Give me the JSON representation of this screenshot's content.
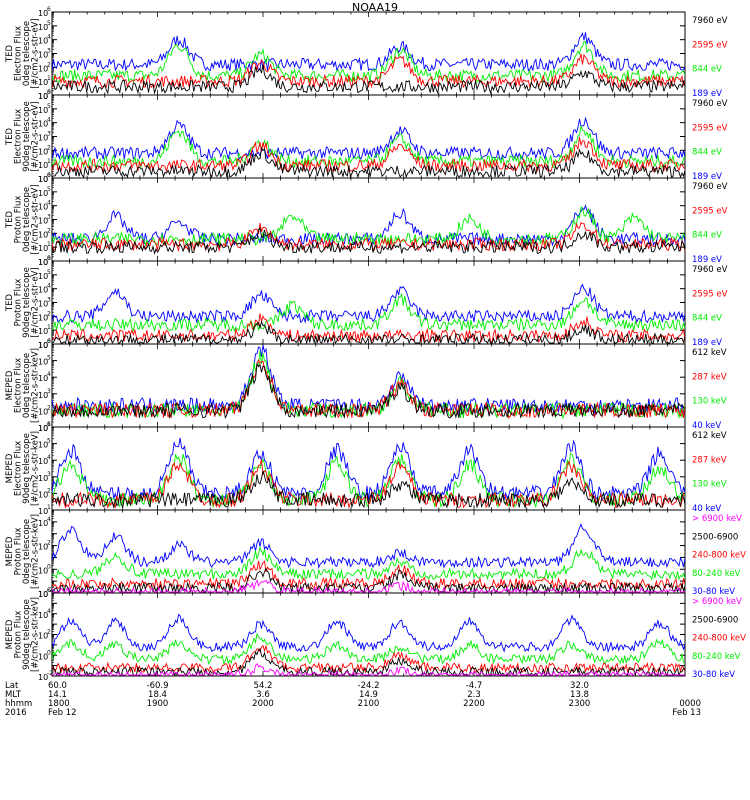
{
  "title": "NOAA19",
  "colors": {
    "blue": "#0000ff",
    "red": "#ff0000",
    "green": "#00ee00",
    "black": "#000000",
    "magenta": "#ff00ff",
    "axis": "#000000"
  },
  "chart_data": [
    {
      "type": "line",
      "instrument": "TED",
      "quantity": "Electron Flux",
      "telescope": "0deg telescope",
      "units": "[#/cm2-s-str-eV]",
      "ylabel": "TED Electron Flux 0deg telescope [#/cm2-s-str-eV]",
      "yscale": "log",
      "ylim_exp": [
        0,
        6
      ],
      "channels": [
        {
          "name": "7960 eV",
          "color": "black"
        },
        {
          "name": "2595 eV",
          "color": "red"
        },
        {
          "name": "844 eV",
          "color": "green"
        },
        {
          "name": "189 eV",
          "color": "blue"
        }
      ],
      "series": [
        {
          "name": "189 eV",
          "color": "blue",
          "base": 2.2,
          "bursts": [
            [
              0.2,
              1.8
            ],
            [
              0.55,
              1.3
            ],
            [
              0.84,
              2.0
            ]
          ]
        },
        {
          "name": "844 eV",
          "color": "green",
          "base": 1.4,
          "bursts": [
            [
              0.2,
              2.2
            ],
            [
              0.33,
              1.5
            ],
            [
              0.55,
              1.8
            ],
            [
              0.84,
              2.2
            ]
          ]
        },
        {
          "name": "2595 eV",
          "color": "red",
          "base": 1.0,
          "bursts": [
            [
              0.33,
              1.3
            ],
            [
              0.55,
              1.5
            ],
            [
              0.84,
              1.6
            ]
          ]
        },
        {
          "name": "7960 eV",
          "color": "black",
          "base": 0.6,
          "bursts": [
            [
              0.33,
              1.2
            ],
            [
              0.84,
              1.0
            ]
          ]
        }
      ]
    },
    {
      "type": "line",
      "instrument": "TED",
      "quantity": "Electron Flux",
      "telescope": "90deg telescope",
      "units": "[#/cm2-s-str-eV]",
      "ylabel": "TED Electron Flux 90deg telescope [#/cm2-s-str-eV]",
      "yscale": "log",
      "ylim_exp": [
        0,
        6
      ],
      "channels": [
        {
          "name": "7960 eV",
          "color": "black"
        },
        {
          "name": "2595 eV",
          "color": "red"
        },
        {
          "name": "844 eV",
          "color": "green"
        },
        {
          "name": "189 eV",
          "color": "blue"
        }
      ],
      "series": [
        {
          "name": "189 eV",
          "color": "blue",
          "base": 1.8,
          "bursts": [
            [
              0.2,
              2.0
            ],
            [
              0.55,
              1.6
            ],
            [
              0.84,
              2.4
            ]
          ]
        },
        {
          "name": "844 eV",
          "color": "green",
          "base": 1.2,
          "bursts": [
            [
              0.2,
              2.2
            ],
            [
              0.33,
              1.4
            ],
            [
              0.55,
              1.6
            ],
            [
              0.84,
              2.2
            ]
          ]
        },
        {
          "name": "2595 eV",
          "color": "red",
          "base": 0.9,
          "bursts": [
            [
              0.33,
              1.4
            ],
            [
              0.55,
              1.4
            ],
            [
              0.84,
              1.8
            ]
          ]
        },
        {
          "name": "7960 eV",
          "color": "black",
          "base": 0.5,
          "bursts": [
            [
              0.33,
              1.3
            ],
            [
              0.84,
              1.2
            ]
          ]
        }
      ]
    },
    {
      "type": "line",
      "instrument": "TED",
      "quantity": "Proton Flux",
      "telescope": "0deg telescope",
      "units": "[#/cm2-s-str-eV]",
      "ylabel": "TED Proton Flux 0deg telescope [#/cm2-s-str-eV]",
      "yscale": "log",
      "ylim_exp": [
        0,
        6
      ],
      "channels": [
        {
          "name": "7960 eV",
          "color": "black"
        },
        {
          "name": "2595 eV",
          "color": "red"
        },
        {
          "name": "844 eV",
          "color": "green"
        },
        {
          "name": "189 eV",
          "color": "blue"
        }
      ],
      "series": [
        {
          "name": "189 eV",
          "color": "blue",
          "base": 1.6,
          "bursts": [
            [
              0.1,
              1.6
            ],
            [
              0.2,
              1.2
            ],
            [
              0.55,
              1.8
            ],
            [
              0.84,
              2.2
            ]
          ]
        },
        {
          "name": "844 eV",
          "color": "green",
          "base": 1.6,
          "bursts": [
            [
              0.38,
              1.6
            ],
            [
              0.66,
              1.4
            ],
            [
              0.84,
              2.0
            ],
            [
              0.92,
              1.5
            ]
          ]
        },
        {
          "name": "2595 eV",
          "color": "red",
          "base": 1.2,
          "bursts": [
            [
              0.33,
              1.2
            ],
            [
              0.84,
              1.4
            ]
          ]
        },
        {
          "name": "7960 eV",
          "color": "black",
          "base": 1.0,
          "bursts": [
            [
              0.33,
              1.0
            ],
            [
              0.84,
              1.0
            ]
          ]
        }
      ]
    },
    {
      "type": "line",
      "instrument": "TED",
      "quantity": "Proton Flux",
      "telescope": "90deg telescope",
      "units": "[#/cm2-s-str-eV]",
      "ylabel": "TED Proton Flux 90deg telescope [#/cm2-s-str-eV]",
      "yscale": "log",
      "ylim_exp": [
        0,
        6
      ],
      "channels": [
        {
          "name": "7960 eV",
          "color": "black"
        },
        {
          "name": "2595 eV",
          "color": "red"
        },
        {
          "name": "844 eV",
          "color": "green"
        },
        {
          "name": "189 eV",
          "color": "blue"
        }
      ],
      "series": [
        {
          "name": "189 eV",
          "color": "blue",
          "base": 2.0,
          "bursts": [
            [
              0.1,
              1.8
            ],
            [
              0.33,
              1.5
            ],
            [
              0.55,
              1.8
            ],
            [
              0.84,
              2.0
            ]
          ]
        },
        {
          "name": "844 eV",
          "color": "green",
          "base": 1.4,
          "bursts": [
            [
              0.38,
              1.4
            ],
            [
              0.55,
              1.8
            ],
            [
              0.84,
              1.8
            ]
          ]
        },
        {
          "name": "2595 eV",
          "color": "red",
          "base": 0.6,
          "bursts": [
            [
              0.33,
              1.2
            ],
            [
              0.84,
              1.0
            ]
          ]
        },
        {
          "name": "7960 eV",
          "color": "black",
          "base": 0.3,
          "bursts": [
            [
              0.33,
              0.9
            ],
            [
              0.84,
              0.8
            ]
          ]
        }
      ]
    },
    {
      "type": "line",
      "instrument": "MEPED",
      "quantity": "Electron Flux",
      "telescope": "0deg telescope",
      "units": "[#/cm2-s-str-keV]",
      "ylabel": "MEPED Electron Flux 0deg telescope [#/cm2-s-str-keV]",
      "yscale": "log",
      "ylim_exp": [
        1,
        6
      ],
      "channels": [
        {
          "name": "612 keV",
          "color": "black"
        },
        {
          "name": "287 keV",
          "color": "red"
        },
        {
          "name": "130 keV",
          "color": "green"
        },
        {
          "name": "40 keV",
          "color": "blue"
        }
      ],
      "series": [
        {
          "name": "40 keV",
          "color": "blue",
          "base": 2.3,
          "bursts": [
            [
              0.33,
              3.4
            ],
            [
              0.55,
              1.7
            ]
          ]
        },
        {
          "name": "130 keV",
          "color": "green",
          "base": 2.0,
          "bursts": [
            [
              0.33,
              3.2
            ],
            [
              0.55,
              1.6
            ]
          ]
        },
        {
          "name": "287 keV",
          "color": "red",
          "base": 2.0,
          "bursts": [
            [
              0.33,
              3.0
            ],
            [
              0.55,
              1.5
            ]
          ]
        },
        {
          "name": "612 keV",
          "color": "black",
          "base": 2.0,
          "bursts": [
            [
              0.33,
              2.6
            ],
            [
              0.55,
              1.3
            ]
          ]
        }
      ]
    },
    {
      "type": "line",
      "instrument": "MEPED",
      "quantity": "Electron Flux",
      "telescope": "90deg telescope",
      "units": "[#/cm2-s-str-keV]",
      "ylabel": "MEPED Electron Flux 90deg telescope [#/cm2-s-str-keV]",
      "yscale": "log",
      "ylim_exp": [
        1,
        6
      ],
      "channels": [
        {
          "name": "612 keV",
          "color": "black"
        },
        {
          "name": "287 keV",
          "color": "red"
        },
        {
          "name": "130 keV",
          "color": "green"
        },
        {
          "name": "40 keV",
          "color": "blue"
        }
      ],
      "series": [
        {
          "name": "40 keV",
          "color": "blue",
          "base": 2.0,
          "bursts": [
            [
              0.03,
              2.6
            ],
            [
              0.2,
              3.0
            ],
            [
              0.33,
              2.4
            ],
            [
              0.45,
              2.6
            ],
            [
              0.55,
              2.8
            ],
            [
              0.66,
              2.6
            ],
            [
              0.82,
              2.8
            ],
            [
              0.96,
              2.4
            ]
          ]
        },
        {
          "name": "130 keV",
          "color": "green",
          "base": 1.6,
          "bursts": [
            [
              0.03,
              2.2
            ],
            [
              0.2,
              2.6
            ],
            [
              0.33,
              2.2
            ],
            [
              0.45,
              2.2
            ],
            [
              0.55,
              2.4
            ],
            [
              0.66,
              2.2
            ],
            [
              0.82,
              2.4
            ],
            [
              0.96,
              2.0
            ]
          ]
        },
        {
          "name": "287 keV",
          "color": "red",
          "base": 1.6,
          "bursts": [
            [
              0.2,
              2.2
            ],
            [
              0.33,
              2.0
            ],
            [
              0.55,
              2.0
            ],
            [
              0.82,
              2.0
            ]
          ]
        },
        {
          "name": "612 keV",
          "color": "black",
          "base": 1.6,
          "bursts": [
            [
              0.33,
              1.4
            ],
            [
              0.55,
              1.0
            ],
            [
              0.82,
              1.0
            ]
          ]
        }
      ]
    },
    {
      "type": "line",
      "instrument": "MEPED",
      "quantity": "Proton Flux",
      "telescope": "0deg telescope",
      "units": "[#/cm2-s-str-keV]",
      "ylabel": "MEPED Proton Flux 0deg telescope [#/cm2-s-str-keV]",
      "yscale": "log",
      "ylim_exp": [
        -2,
        5
      ],
      "channels": [
        {
          "name": "> 6900 keV",
          "color": "magenta"
        },
        {
          "name": "2500-6900",
          "color": "black"
        },
        {
          "name": "240-800 keV",
          "color": "red"
        },
        {
          "name": "80-240 keV",
          "color": "green"
        },
        {
          "name": "30-80 keV",
          "color": "blue"
        }
      ],
      "series": [
        {
          "name": "30-80 keV",
          "color": "blue",
          "base": 0.6,
          "bursts": [
            [
              0.03,
              2.8
            ],
            [
              0.1,
              2.2
            ],
            [
              0.2,
              1.4
            ],
            [
              0.33,
              1.6
            ],
            [
              0.55,
              0.8
            ],
            [
              0.84,
              3.0
            ]
          ]
        },
        {
          "name": "80-240 keV",
          "color": "green",
          "base": -0.4,
          "bursts": [
            [
              0.1,
              1.6
            ],
            [
              0.33,
              1.8
            ],
            [
              0.55,
              1.0
            ],
            [
              0.84,
              2.0
            ]
          ]
        },
        {
          "name": "240-800 keV",
          "color": "red",
          "base": -1.2,
          "bursts": [
            [
              0.33,
              1.6
            ],
            [
              0.55,
              1.2
            ]
          ]
        },
        {
          "name": "2500-6900",
          "color": "black",
          "base": -1.6,
          "bursts": [
            [
              0.33,
              1.4
            ],
            [
              0.55,
              1.1
            ]
          ]
        },
        {
          "name": "> 6900 keV",
          "color": "magenta",
          "base": -2.0,
          "bursts": [
            [
              0.33,
              1.0
            ],
            [
              0.55,
              0.6
            ]
          ]
        }
      ]
    },
    {
      "type": "line",
      "instrument": "MEPED",
      "quantity": "Proton Flux",
      "telescope": "90deg telescope",
      "units": "[#/cm2-s-str-keV]",
      "ylabel": "MEPED Proton Flux 90deg telescope [#/cm2-s-str-keV]",
      "yscale": "log",
      "ylim_exp": [
        -2,
        6
      ],
      "channels": [
        {
          "name": "> 6900 keV",
          "color": "magenta"
        },
        {
          "name": "2500-6900",
          "color": "black"
        },
        {
          "name": "240-800 keV",
          "color": "red"
        },
        {
          "name": "80-240 keV",
          "color": "green"
        },
        {
          "name": "30-80 keV",
          "color": "blue"
        }
      ],
      "series": [
        {
          "name": "30-80 keV",
          "color": "blue",
          "base": 0.8,
          "bursts": [
            [
              0.03,
              2.6
            ],
            [
              0.1,
              2.4
            ],
            [
              0.2,
              2.8
            ],
            [
              0.33,
              2.2
            ],
            [
              0.45,
              2.4
            ],
            [
              0.55,
              2.4
            ],
            [
              0.66,
              2.6
            ],
            [
              0.82,
              2.6
            ],
            [
              0.96,
              2.2
            ]
          ]
        },
        {
          "name": "80-240 keV",
          "color": "green",
          "base": -0.4,
          "bursts": [
            [
              0.03,
              1.6
            ],
            [
              0.1,
              1.4
            ],
            [
              0.2,
              1.6
            ],
            [
              0.33,
              2.2
            ],
            [
              0.45,
              1.4
            ],
            [
              0.55,
              1.2
            ],
            [
              0.66,
              1.4
            ],
            [
              0.82,
              1.4
            ],
            [
              0.96,
              1.6
            ]
          ]
        },
        {
          "name": "240-800 keV",
          "color": "red",
          "base": -1.2,
          "bursts": [
            [
              0.33,
              2.0
            ],
            [
              0.55,
              1.2
            ]
          ]
        },
        {
          "name": "2500-6900",
          "color": "black",
          "base": -1.6,
          "bursts": [
            [
              0.33,
              1.8
            ],
            [
              0.55,
              1.0
            ]
          ]
        },
        {
          "name": "> 6900 keV",
          "color": "magenta",
          "base": -2.0,
          "bursts": [
            [
              0.33,
              0.8
            ],
            [
              0.55,
              0.5
            ]
          ]
        }
      ]
    }
  ],
  "x_axis": {
    "row_labels": [
      "Lat",
      "MLT",
      "hhmm",
      "2016"
    ],
    "ticks": [
      {
        "lat": "60.0",
        "mlt": "14.1",
        "hhmm": "1800",
        "date": "Feb 12"
      },
      {
        "lat": "-60.9",
        "mlt": "18.4",
        "hhmm": "1900",
        "date": ""
      },
      {
        "lat": "54.2",
        "mlt": "3.6",
        "hhmm": "2000",
        "date": ""
      },
      {
        "lat": "-24.2",
        "mlt": "14.9",
        "hhmm": "2100",
        "date": ""
      },
      {
        "lat": "-4.7",
        "mlt": "2.3",
        "hhmm": "2200",
        "date": ""
      },
      {
        "lat": "32.0",
        "mlt": "13.8",
        "hhmm": "2300",
        "date": ""
      },
      {
        "lat": "",
        "mlt": "",
        "hhmm": "0000",
        "date": "Feb 13"
      }
    ]
  }
}
